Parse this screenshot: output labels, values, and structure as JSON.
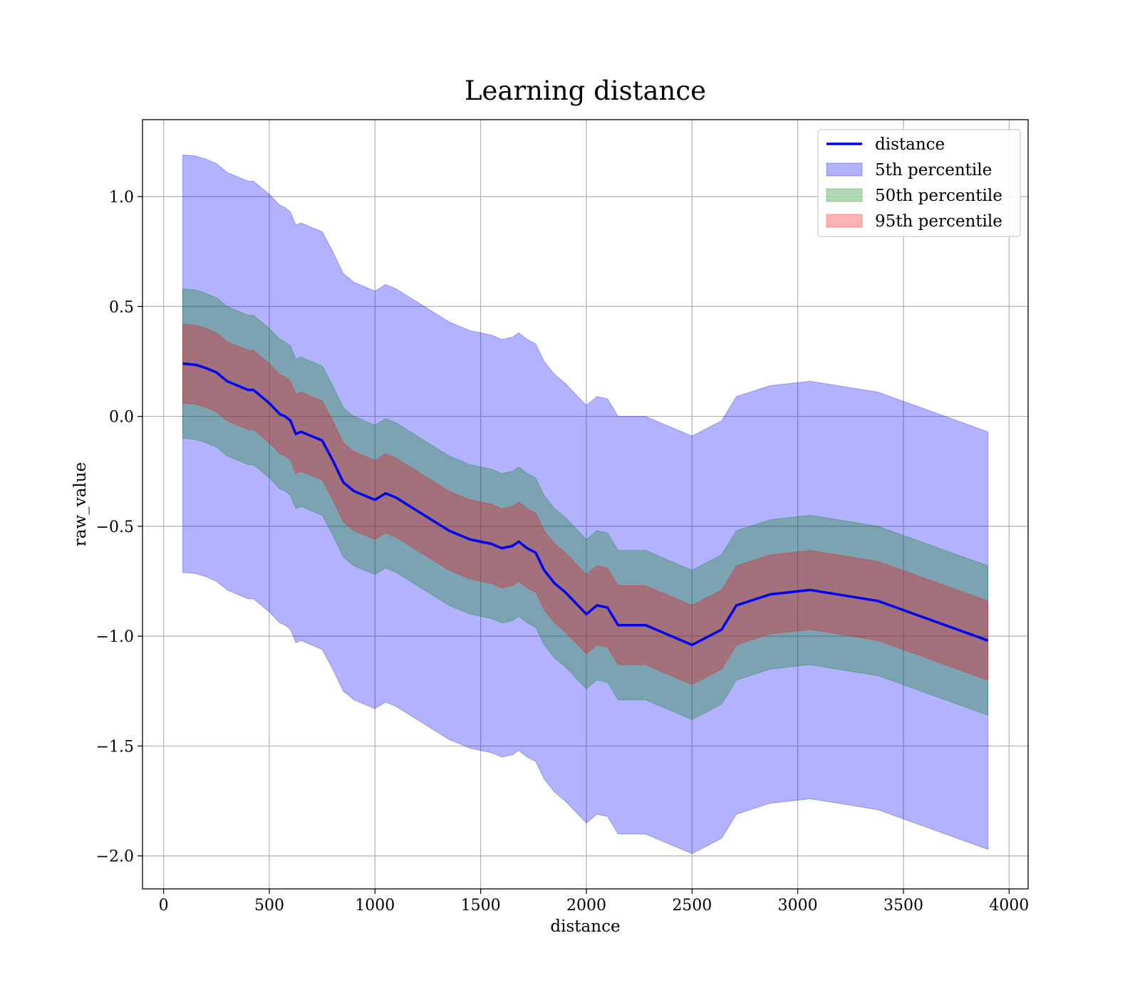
{
  "chart_data": {
    "type": "line",
    "title": "Learning distance",
    "xlabel": "distance",
    "ylabel": "raw_value",
    "xlim": [
      -100,
      4090
    ],
    "ylim": [
      -2.15,
      1.35
    ],
    "xticks": [
      0,
      500,
      1000,
      1500,
      2000,
      2500,
      3000,
      3500,
      4000
    ],
    "xtick_labels": [
      "0",
      "500",
      "1000",
      "1500",
      "2000",
      "2500",
      "3000",
      "3500",
      "4000"
    ],
    "yticks": [
      1.0,
      0.5,
      0.0,
      -0.5,
      -1.0,
      -1.5,
      -2.0
    ],
    "ytick_labels": [
      "1.0",
      "0.5",
      "0.0",
      "−0.5",
      "−1.0",
      "−1.5",
      "−2.0"
    ],
    "grid": true,
    "legend_position": "top-right",
    "x": [
      90,
      150,
      200,
      250,
      300,
      350,
      400,
      425,
      450,
      500,
      550,
      575,
      600,
      625,
      650,
      700,
      750,
      800,
      850,
      900,
      950,
      1000,
      1050,
      1100,
      1150,
      1200,
      1250,
      1300,
      1350,
      1400,
      1450,
      1500,
      1550,
      1600,
      1650,
      1680,
      1720,
      1760,
      1800,
      1850,
      1900,
      1950,
      2000,
      2050,
      2100,
      2150,
      2280,
      2500,
      2640,
      2710,
      2870,
      3060,
      3380,
      3900
    ],
    "series": [
      {
        "name": "distance",
        "color": "#0000ee",
        "values": [
          0.24,
          0.235,
          0.22,
          0.2,
          0.16,
          0.14,
          0.12,
          0.12,
          0.1,
          0.06,
          0.01,
          0.0,
          -0.02,
          -0.08,
          -0.07,
          -0.09,
          -0.11,
          -0.2,
          -0.3,
          -0.34,
          -0.36,
          -0.38,
          -0.35,
          -0.37,
          -0.4,
          -0.43,
          -0.46,
          -0.49,
          -0.52,
          -0.54,
          -0.56,
          -0.57,
          -0.58,
          -0.6,
          -0.59,
          -0.57,
          -0.6,
          -0.62,
          -0.7,
          -0.76,
          -0.8,
          -0.85,
          -0.9,
          -0.86,
          -0.87,
          -0.95,
          -0.95,
          -1.04,
          -0.97,
          -0.86,
          -0.81,
          -0.79,
          -0.84,
          -1.02
        ]
      },
      {
        "name": "5th percentile",
        "color": "#0000ff",
        "band_offset": 0.95
      },
      {
        "name": "50th percentile",
        "color": "#008000",
        "band_offset": 0.34
      },
      {
        "name": "95th percentile",
        "color": "#ff0000",
        "band_offset": 0.18
      }
    ]
  }
}
